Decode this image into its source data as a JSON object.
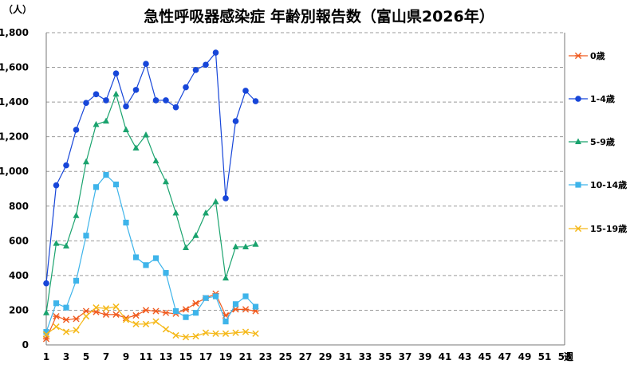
{
  "chart_data": {
    "type": "line",
    "title": "急性呼吸器感染症 年齢別報告数（富山県2026年）",
    "ylabel": "（人）",
    "xlabel": "週",
    "ylim": [
      0,
      1800
    ],
    "yticks": [
      0,
      200,
      400,
      600,
      800,
      "1,000",
      "1,200",
      "1,400",
      "1,600",
      "1,800"
    ],
    "xlim": [
      1,
      53
    ],
    "xticks": [
      1,
      3,
      5,
      7,
      9,
      11,
      13,
      15,
      17,
      19,
      21,
      23,
      25,
      27,
      29,
      31,
      33,
      35,
      37,
      39,
      41,
      43,
      45,
      47,
      49,
      51,
      53
    ],
    "grid": "horizontal dashed",
    "legend_position": "right",
    "x": [
      1,
      2,
      3,
      4,
      5,
      6,
      7,
      8,
      9,
      10,
      11,
      12,
      13,
      14,
      15,
      16,
      17,
      18,
      19,
      20,
      21,
      22
    ],
    "series": [
      {
        "name": "0歳",
        "color": "#f05a1e",
        "marker": "asterisk",
        "values": [
          35,
          165,
          145,
          150,
          195,
          190,
          175,
          175,
          155,
          170,
          200,
          195,
          185,
          180,
          205,
          240,
          270,
          295,
          170,
          205,
          205,
          195
        ]
      },
      {
        "name": "1-4歳",
        "color": "#1746d9",
        "marker": "circle",
        "values": [
          355,
          920,
          1035,
          1240,
          1395,
          1445,
          1410,
          1565,
          1375,
          1470,
          1620,
          1410,
          1410,
          1370,
          1485,
          1585,
          1615,
          1685,
          845,
          1290,
          1465,
          1405
        ]
      },
      {
        "name": "5-9歳",
        "color": "#1aa36e",
        "marker": "triangle",
        "values": [
          185,
          585,
          570,
          745,
          1055,
          1270,
          1290,
          1445,
          1240,
          1135,
          1210,
          1060,
          940,
          760,
          560,
          630,
          760,
          825,
          385,
          565,
          565,
          580
        ]
      },
      {
        "name": "10-14歳",
        "color": "#3eb4ea",
        "marker": "square",
        "values": [
          75,
          240,
          215,
          370,
          630,
          910,
          980,
          925,
          705,
          505,
          460,
          500,
          415,
          195,
          160,
          185,
          270,
          280,
          135,
          235,
          280,
          220
        ]
      },
      {
        "name": "15-19歳",
        "color": "#f5b818",
        "marker": "x",
        "values": [
          60,
          105,
          75,
          85,
          165,
          215,
          210,
          220,
          145,
          120,
          120,
          135,
          90,
          55,
          45,
          50,
          70,
          65,
          65,
          70,
          75,
          65
        ]
      }
    ]
  }
}
